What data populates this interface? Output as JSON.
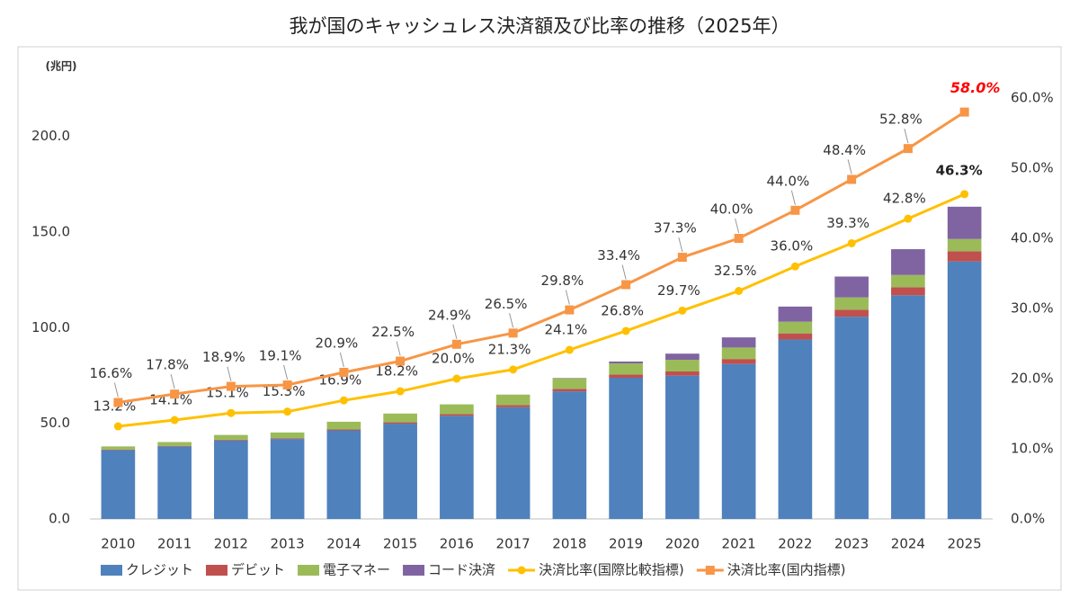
{
  "chart_data": {
    "type": "bar",
    "title": "我が国のキャッシュレス決済額及び比率の推移（2025年）",
    "y_label": "(兆円)",
    "categories": [
      "2010",
      "2011",
      "2012",
      "2013",
      "2014",
      "2015",
      "2016",
      "2017",
      "2018",
      "2019",
      "2020",
      "2021",
      "2022",
      "2023",
      "2024",
      "2025"
    ],
    "series": [
      {
        "name": "クレジット",
        "type": "bar",
        "color": "#4f81bd",
        "values": [
          36.0,
          37.9,
          41.0,
          41.8,
          46.3,
          49.8,
          53.9,
          58.4,
          66.7,
          73.8,
          74.9,
          81.0,
          93.8,
          105.7,
          116.9,
          134.6
        ]
      },
      {
        "name": "デビット",
        "type": "bar",
        "color": "#c0504d",
        "values": [
          0.3,
          0.3,
          0.4,
          0.4,
          0.5,
          0.7,
          0.9,
          1.1,
          1.3,
          1.7,
          2.2,
          2.6,
          3.2,
          3.7,
          4.2,
          5.3
        ]
      },
      {
        "name": "電子マネー",
        "type": "bar",
        "color": "#9bbb59",
        "values": [
          1.6,
          2.0,
          2.5,
          3.0,
          4.0,
          4.6,
          5.1,
          5.5,
          5.5,
          5.8,
          6.1,
          6.0,
          6.1,
          6.4,
          6.4,
          6.4
        ]
      },
      {
        "name": "コード決済",
        "type": "bar",
        "color": "#8064a2",
        "values": [
          0,
          0,
          0,
          0,
          0,
          0,
          0,
          0,
          0.2,
          1.0,
          3.2,
          5.3,
          7.9,
          10.9,
          13.5,
          16.9
        ]
      },
      {
        "name": "決済比率(国際比較指標)",
        "type": "line",
        "axis": "y2",
        "marker": "circle",
        "color": "#ffc000",
        "values": [
          13.2,
          14.1,
          15.1,
          15.3,
          16.9,
          18.2,
          20.0,
          21.3,
          24.1,
          26.8,
          29.7,
          32.5,
          36.0,
          39.3,
          42.8,
          46.3
        ],
        "value_labels": [
          "13.2%",
          "14.1%",
          "15.1%",
          "15.3%",
          "16.9%",
          "18.2%",
          "20.0%",
          "21.3%",
          "24.1%",
          "26.8%",
          "29.7%",
          "32.5%",
          "36.0%",
          "39.3%",
          "42.8%",
          "46.3%"
        ]
      },
      {
        "name": "決済比率(国内指標)",
        "type": "line",
        "axis": "y2",
        "marker": "square",
        "color": "#f79646",
        "values": [
          16.6,
          17.8,
          18.9,
          19.1,
          20.9,
          22.5,
          24.9,
          26.5,
          29.8,
          33.4,
          37.3,
          40.0,
          44.0,
          48.4,
          52.8,
          58.0
        ],
        "value_labels": [
          "16.6%",
          "17.8%",
          "18.9%",
          "19.1%",
          "20.9%",
          "22.5%",
          "24.9%",
          "26.5%",
          "29.8%",
          "33.4%",
          "37.3%",
          "40.0%",
          "44.0%",
          "48.4%",
          "52.8%",
          "58.0%"
        ]
      }
    ],
    "ylim": [
      0,
      220
    ],
    "yticks": [
      {
        "value": 0,
        "label": "0.0"
      },
      {
        "value": 50,
        "label": "50.0"
      },
      {
        "value": 100,
        "label": "100.0"
      },
      {
        "value": 150,
        "label": "150.0"
      },
      {
        "value": 200,
        "label": "200.0"
      }
    ],
    "y2lim": [
      0,
      60
    ],
    "y2ticks": [
      {
        "value": 0,
        "label": "0.0%"
      },
      {
        "value": 10,
        "label": "10.0%"
      },
      {
        "value": 20,
        "label": "20.0%"
      },
      {
        "value": 30,
        "label": "30.0%"
      },
      {
        "value": 40,
        "label": "40.0%"
      },
      {
        "value": 50,
        "label": "50.0%"
      },
      {
        "value": 60,
        "label": "60.0%"
      }
    ],
    "grid": false,
    "legend": "bottom"
  }
}
